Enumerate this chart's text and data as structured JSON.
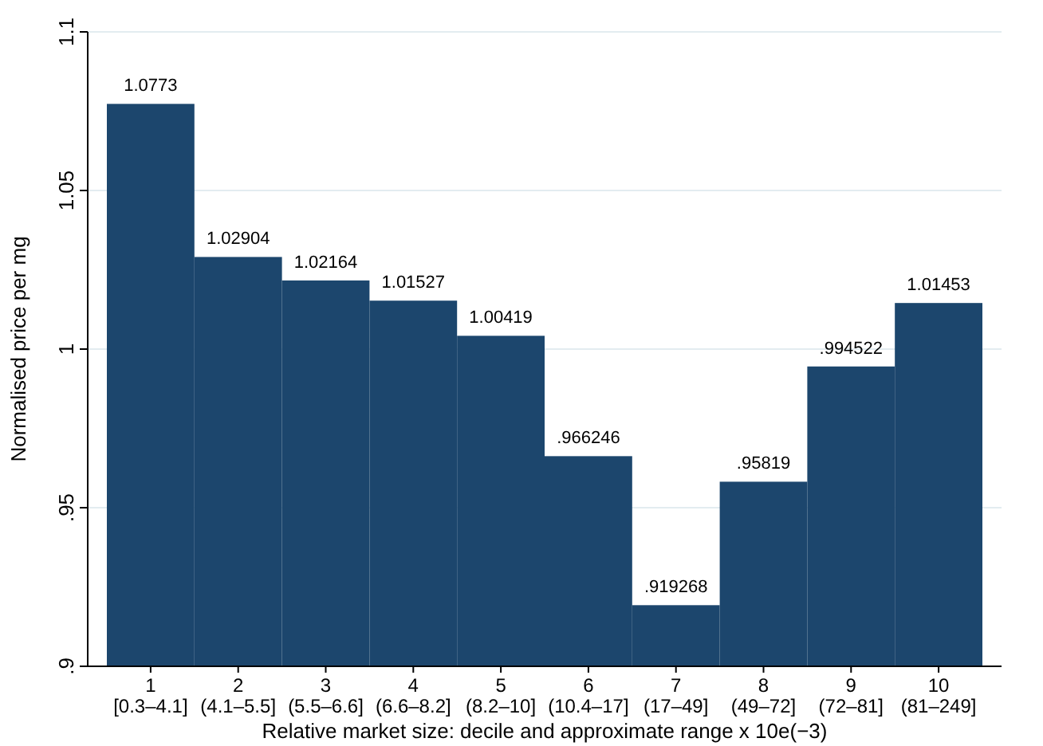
{
  "chart_data": {
    "type": "bar",
    "xlabel": "Relative market size: decile and approximate range x 10e(−3)",
    "ylabel": "Normalised price per mg",
    "categories": [
      "1\n[0.3–4.1]",
      "2\n(4.1–5.5]",
      "3\n(5.5–6.6]",
      "4\n(6.6–8.2]",
      "5\n(8.2–10]",
      "6\n(10.4–17]",
      "7\n(17–49]",
      "8\n(49–72]",
      "9\n(72–81]",
      "10\n(81–249]"
    ],
    "values": [
      1.0773,
      1.02904,
      1.02164,
      1.01527,
      1.00419,
      0.966246,
      0.919268,
      0.95819,
      0.994522,
      1.01453
    ],
    "value_labels": [
      "1.0773",
      "1.02904",
      "1.02164",
      "1.01527",
      "1.00419",
      ".966246",
      ".919268",
      ".95819",
      ".994522",
      "1.01453"
    ],
    "color": "#1c466d",
    "ylim": [
      0.9,
      1.1
    ],
    "yticks": [
      {
        "value": 0.9,
        "label": ".9"
      },
      {
        "value": 0.95,
        "label": ".95"
      },
      1,
      1.05,
      1.1
    ],
    "grid": "y"
  }
}
